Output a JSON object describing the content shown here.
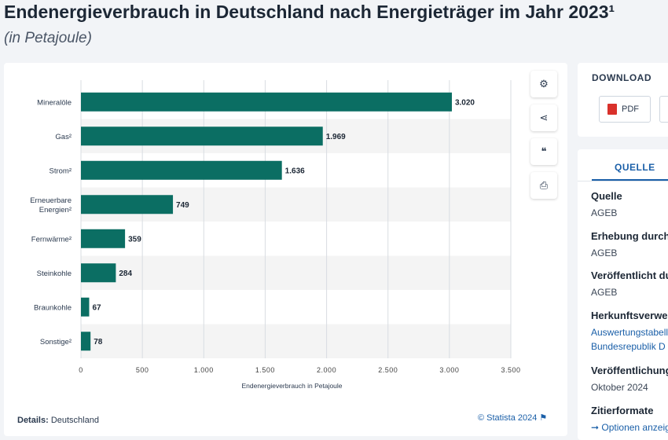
{
  "header": {
    "title": "Endenergieverbrauch in Deutschland nach Energieträger im Jahr 2023¹",
    "subtitle": "(in Petajoule)"
  },
  "footer": {
    "details_label": "Details:",
    "details_value": "Deutschland",
    "copyright": "© Statista 2024 ⚑"
  },
  "download": {
    "title": "DOWNLOAD",
    "pdf_label": "PDF"
  },
  "source_panel": {
    "tab": "QUELLE",
    "items": [
      {
        "label": "Quelle",
        "value": "AGEB"
      },
      {
        "label": "Erhebung durch",
        "value": "AGEB"
      },
      {
        "label": "Veröffentlicht durch",
        "value": "AGEB"
      },
      {
        "label": "Herkunftsverweis",
        "links": [
          "Auswertungstabellen",
          "Bundesrepublik D"
        ]
      },
      {
        "label": "Veröffentlichung",
        "value": "Oktober 2024"
      },
      {
        "label": "Zitierformate",
        "link": "➞ Optionen anzeigen"
      }
    ]
  },
  "tools": [
    {
      "icon": "gear-icon",
      "glyph": "⚙"
    },
    {
      "icon": "share-icon",
      "glyph": "⋖"
    },
    {
      "icon": "quote-icon",
      "glyph": "❝"
    },
    {
      "icon": "print-icon",
      "glyph": "⎙"
    }
  ],
  "colors": {
    "bar": "#0b6e63",
    "stripe": "#f4f4f4",
    "grid": "#d9dde2"
  },
  "chart_data": {
    "type": "bar",
    "orientation": "horizontal",
    "categories": [
      "Mineralöle",
      "Gas²",
      "Strom²",
      "Erneuerbare Energien²",
      "Fernwärme²",
      "Steinkohle",
      "Braunkohle",
      "Sonstige²"
    ],
    "values": [
      3020,
      1969,
      1636,
      749,
      359,
      284,
      67,
      78
    ],
    "value_labels": [
      "3.020",
      "1.969",
      "1.636",
      "749",
      "359",
      "284",
      "67",
      "78"
    ],
    "xlabel": "Endenergieverbrauch in Petajoule",
    "xlim": [
      0,
      3500
    ],
    "ticks": [
      0,
      500,
      1000,
      1500,
      2000,
      2500,
      3000,
      3500
    ],
    "tick_labels": [
      "0",
      "500",
      "1.000",
      "1.500",
      "2.000",
      "2.500",
      "3.000",
      "3.500"
    ],
    "grid": true
  }
}
